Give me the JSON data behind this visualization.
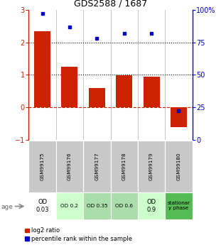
{
  "title": "GDS2588 / 1687",
  "samples": [
    "GSM99175",
    "GSM99176",
    "GSM99177",
    "GSM99178",
    "GSM99179",
    "GSM99180"
  ],
  "log2_ratio": [
    2.35,
    1.25,
    0.58,
    0.98,
    0.95,
    -0.62
  ],
  "percentile_rank": [
    97,
    87,
    78,
    82,
    82,
    22
  ],
  "bar_color": "#cc2200",
  "dot_color": "#0000cc",
  "ylim_left": [
    -1,
    3
  ],
  "ylim_right": [
    0,
    100
  ],
  "yticks_left": [
    -1,
    0,
    1,
    2,
    3
  ],
  "yticks_right": [
    0,
    25,
    50,
    75,
    100
  ],
  "ytick_labels_right": [
    "0",
    "25",
    "50",
    "75",
    "100%"
  ],
  "age_labels": [
    "OD\n0.03",
    "OD 0.2",
    "OD 0.35",
    "OD 0.6",
    "OD\n0.9",
    "stationar\ny phase"
  ],
  "age_bg_colors": [
    "#ffffff",
    "#ccffcc",
    "#aaddaa",
    "#aaddaa",
    "#ccffcc",
    "#55bb55"
  ],
  "sample_bg_color": "#c8c8c8",
  "legend_red_label": "log2 ratio",
  "legend_blue_label": "percentile rank within the sample",
  "bar_width": 0.6
}
